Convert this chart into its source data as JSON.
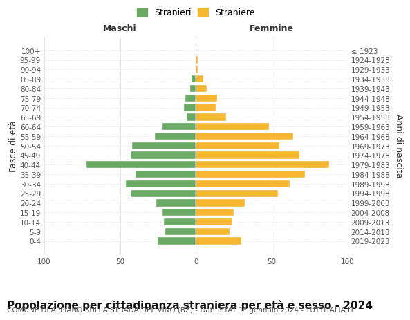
{
  "age_groups": [
    "0-4",
    "5-9",
    "10-14",
    "15-19",
    "20-24",
    "25-29",
    "30-34",
    "35-39",
    "40-44",
    "45-49",
    "50-54",
    "55-59",
    "60-64",
    "65-69",
    "70-74",
    "75-79",
    "80-84",
    "85-89",
    "90-94",
    "95-99",
    "100+"
  ],
  "birth_years": [
    "2019-2023",
    "2014-2018",
    "2009-2013",
    "2004-2008",
    "1999-2003",
    "1994-1998",
    "1989-1993",
    "1984-1988",
    "1979-1983",
    "1974-1978",
    "1969-1973",
    "1964-1968",
    "1959-1963",
    "1954-1958",
    "1949-1953",
    "1944-1948",
    "1939-1943",
    "1934-1938",
    "1929-1933",
    "1924-1928",
    "≤ 1923"
  ],
  "males": [
    25,
    20,
    21,
    22,
    26,
    43,
    46,
    40,
    72,
    43,
    42,
    27,
    22,
    6,
    8,
    7,
    4,
    3,
    0,
    0,
    0
  ],
  "females": [
    30,
    22,
    24,
    25,
    32,
    54,
    62,
    72,
    88,
    68,
    55,
    64,
    48,
    20,
    13,
    14,
    7,
    5,
    1,
    1,
    0
  ],
  "male_color": "#6aaa64",
  "female_color": "#f5b731",
  "background_color": "#ffffff",
  "grid_color": "#cccccc",
  "title": "Popolazione per cittadinanza straniera per età e sesso - 2024",
  "subtitle": "COMUNE DI APPIANO SULLA STRADA DEL VINO (BZ) - Dati ISTAT 1° gennaio 2024 - TUTTITALIA.IT",
  "xlabel_left": "Maschi",
  "xlabel_right": "Femmine",
  "ylabel_left": "Fasce di età",
  "ylabel_right": "Anni di nascita",
  "legend_male": "Stranieri",
  "legend_female": "Straniere",
  "xlim": 100,
  "title_fontsize": 11,
  "subtitle_fontsize": 7.5,
  "tick_fontsize": 7.5,
  "label_fontsize": 9
}
